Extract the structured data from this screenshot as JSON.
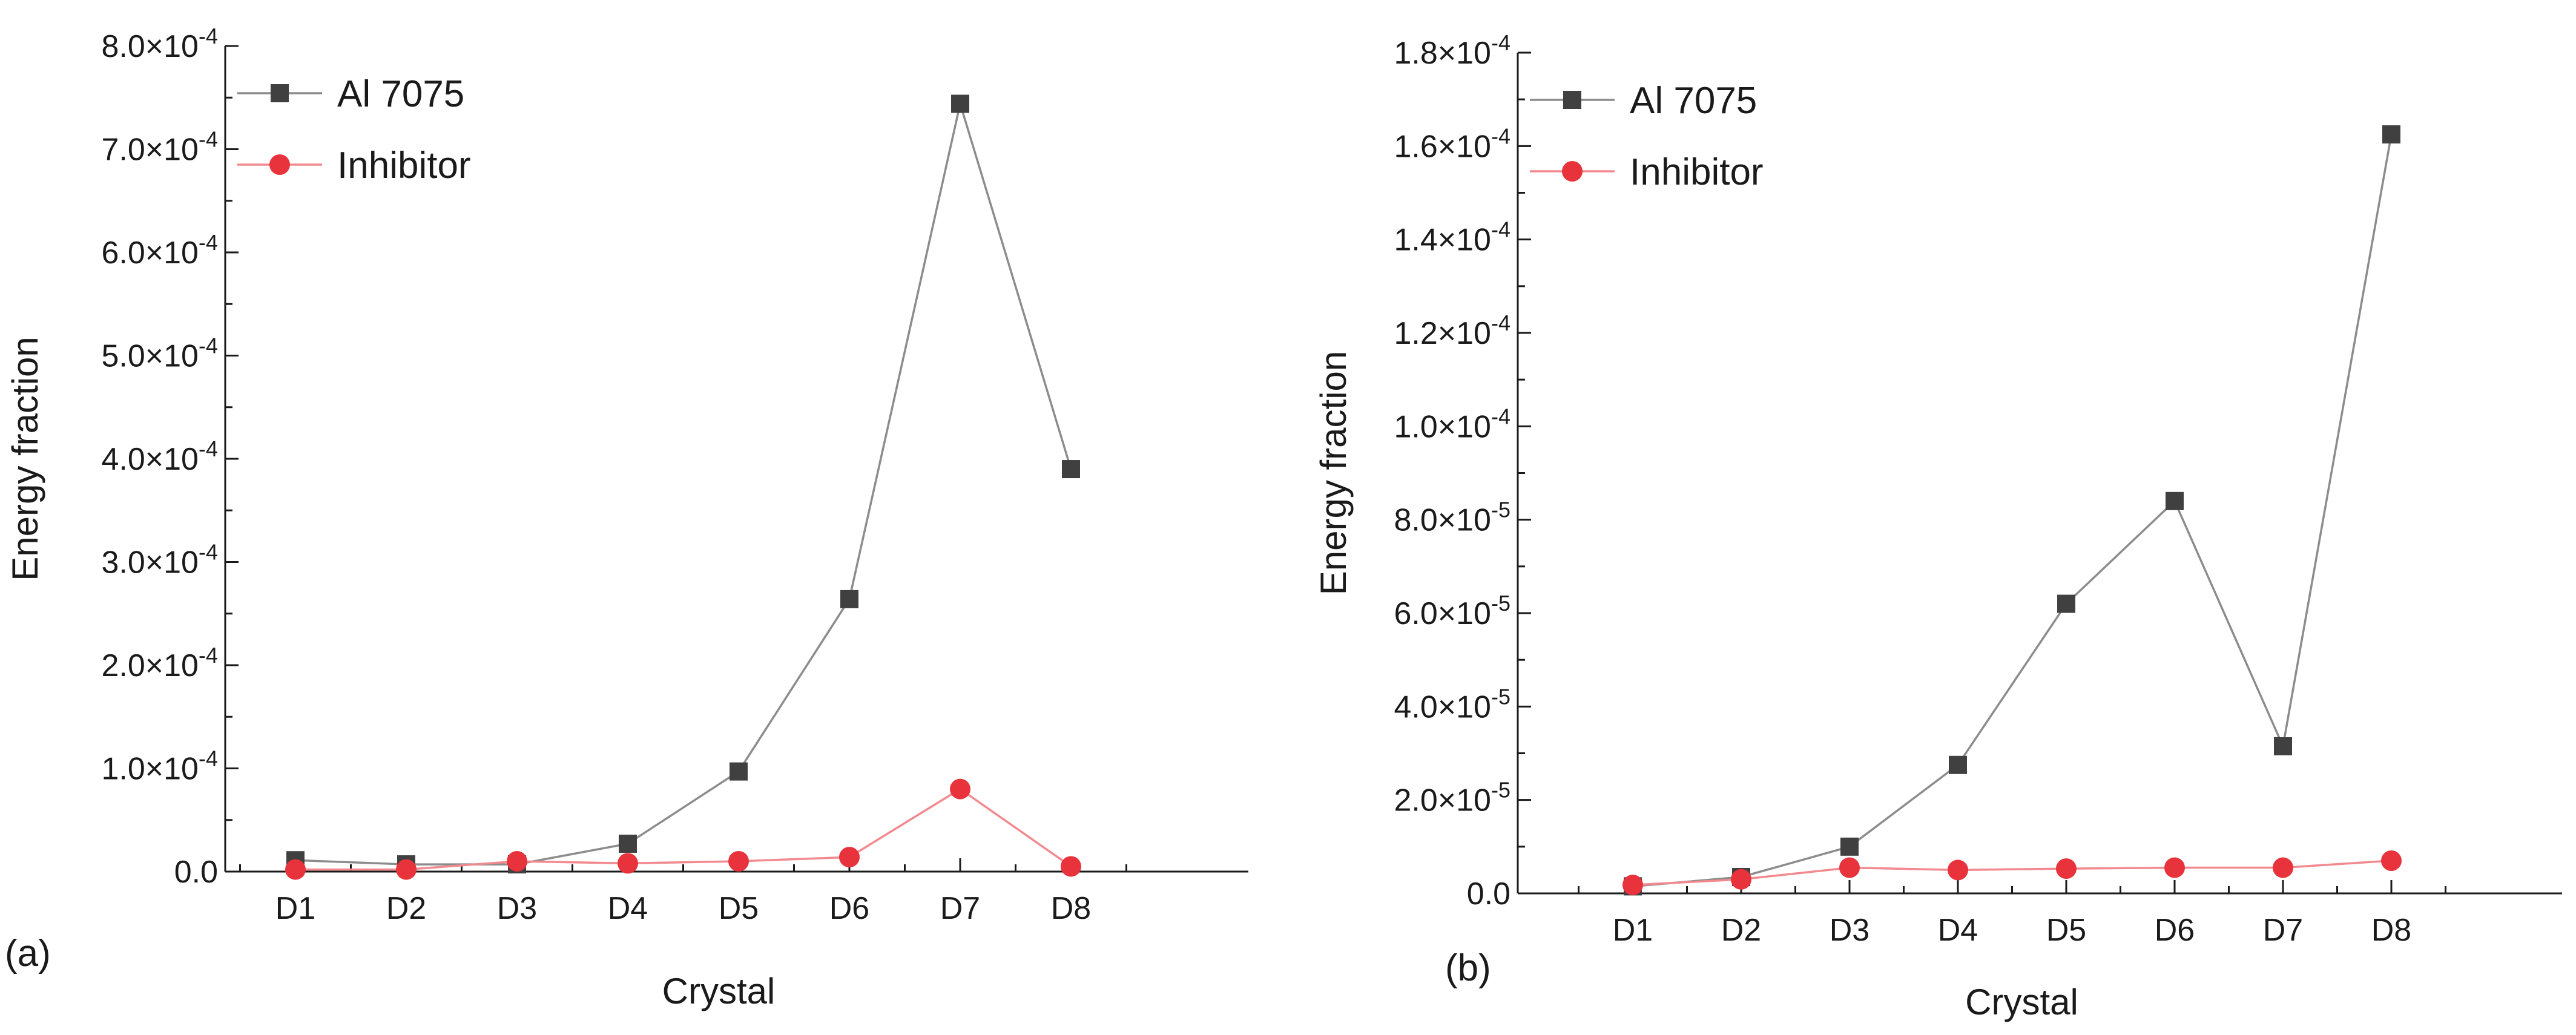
{
  "colors": {
    "series1": "#404040",
    "series1_line": "#8c8c8c",
    "series2": "#e8323c",
    "series2_line": "#f2898f",
    "axis": "#1a1a1a"
  },
  "chart_data": [
    {
      "type": "line",
      "panel_label": "(a)",
      "xlabel": "Crystal",
      "ylabel": "Energy fraction",
      "categories": [
        "D1",
        "D2",
        "D3",
        "D4",
        "D5",
        "D6",
        "D7",
        "D8"
      ],
      "ylim": [
        0,
        0.0008
      ],
      "yticks": [
        {
          "value": 0,
          "mant": "0.0",
          "exp": ""
        },
        {
          "value": 0.0001,
          "mant": "1.0×10",
          "exp": "-4"
        },
        {
          "value": 0.0002,
          "mant": "2.0×10",
          "exp": "-4"
        },
        {
          "value": 0.0003,
          "mant": "3.0×10",
          "exp": "-4"
        },
        {
          "value": 0.0004,
          "mant": "4.0×10",
          "exp": "-4"
        },
        {
          "value": 0.0005,
          "mant": "5.0×10",
          "exp": "-4"
        },
        {
          "value": 0.0006,
          "mant": "6.0×10",
          "exp": "-4"
        },
        {
          "value": 0.0007,
          "mant": "7.0×10",
          "exp": "-4"
        },
        {
          "value": 0.0008,
          "mant": "8.0×10",
          "exp": "-4"
        }
      ],
      "series": [
        {
          "name": "Al 7075",
          "marker": "square",
          "values": [
            1.1e-05,
            7e-06,
            7e-06,
            2.7e-05,
            9.7e-05,
            0.000264,
            0.000744,
            0.00039
          ]
        },
        {
          "name": "Inhibitor",
          "marker": "circle",
          "values": [
            2e-06,
            2e-06,
            1e-05,
            8e-06,
            1e-05,
            1.4e-05,
            8e-05,
            5e-06
          ]
        }
      ]
    },
    {
      "type": "line",
      "panel_label": "(b)",
      "xlabel": "Crystal",
      "ylabel": "Energy fraction",
      "categories": [
        "D1",
        "D2",
        "D3",
        "D4",
        "D5",
        "D6",
        "D7",
        "D8"
      ],
      "ylim": [
        0,
        0.00018
      ],
      "yticks": [
        {
          "value": 0,
          "mant": "0.0",
          "exp": ""
        },
        {
          "value": 2e-05,
          "mant": "2.0×10",
          "exp": "-5"
        },
        {
          "value": 4e-05,
          "mant": "4.0×10",
          "exp": "-5"
        },
        {
          "value": 6e-05,
          "mant": "6.0×10",
          "exp": "-5"
        },
        {
          "value": 8e-05,
          "mant": "8.0×10",
          "exp": "-5"
        },
        {
          "value": 0.0001,
          "mant": "1.0×10",
          "exp": "-4"
        },
        {
          "value": 0.00012,
          "mant": "1.2×10",
          "exp": "-4"
        },
        {
          "value": 0.00014,
          "mant": "1.4×10",
          "exp": "-4"
        },
        {
          "value": 0.00016,
          "mant": "1.6×10",
          "exp": "-4"
        },
        {
          "value": 0.00018,
          "mant": "1.8×10",
          "exp": "-4"
        }
      ],
      "series": [
        {
          "name": "Al 7075",
          "marker": "square",
          "values": [
            1.5e-06,
            3.5e-06,
            1e-05,
            2.75e-05,
            6.2e-05,
            8.4e-05,
            3.15e-05,
            0.0001625
          ]
        },
        {
          "name": "Inhibitor",
          "marker": "circle",
          "values": [
            1.8e-06,
            3e-06,
            5.5e-06,
            5e-06,
            5.3e-06,
            5.5e-06,
            5.5e-06,
            7e-06
          ]
        }
      ]
    }
  ]
}
